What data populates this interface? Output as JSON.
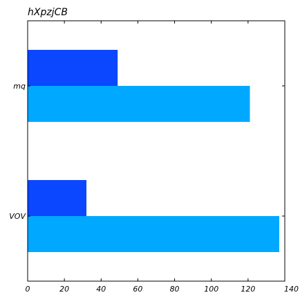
{
  "chart_data": {
    "type": "bar",
    "orientation": "horizontal",
    "title": "hXpzjCB",
    "xlabel": "",
    "ylabel": "",
    "categories": [
      "mq",
      "VOV"
    ],
    "series": [
      {
        "values": [
          49,
          32
        ],
        "color": "#0a47ff"
      },
      {
        "values": [
          121,
          137
        ],
        "color": "#00a8ff"
      }
    ],
    "xlim": [
      0,
      140
    ],
    "xticks": [
      0,
      20,
      40,
      60,
      80,
      100,
      120,
      140
    ],
    "grid": false,
    "legend": "none"
  }
}
